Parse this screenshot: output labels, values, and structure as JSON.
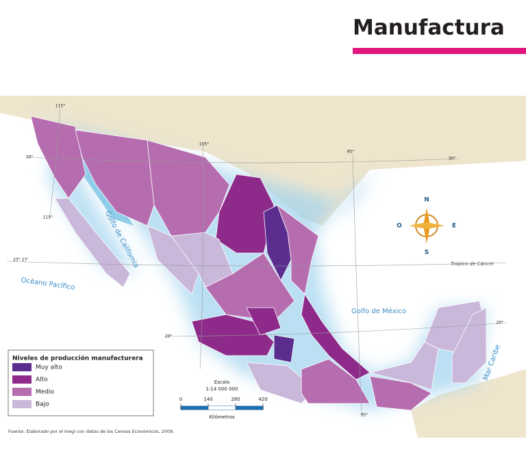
{
  "header": {
    "title": "Manufactura"
  },
  "map": {
    "grid_labels": [
      "115°",
      "115°",
      "105°",
      "95°",
      "95°",
      "30°",
      "30°",
      "23° 27'",
      "20°",
      "20°"
    ],
    "water_labels": [
      "Golfo de California",
      "Océano Pacífico",
      "Golfo de México",
      "Mar Caribe"
    ],
    "tropic_label": "Trópico de Cáncer",
    "compass": {
      "north": "N",
      "south": "S",
      "east": "E",
      "west": "O"
    }
  },
  "legend": {
    "title": "Niveles de producción manufacturera",
    "items": [
      {
        "label": "Muy alto",
        "color": "#5b2d8e"
      },
      {
        "label": "Alto",
        "color": "#8e2a8a"
      },
      {
        "label": "Medio",
        "color": "#b56db0"
      },
      {
        "label": "Bajo",
        "color": "#c9b8da"
      }
    ]
  },
  "scale": {
    "title": "Escala",
    "ratio": "1:14 000 000",
    "ticks": [
      0,
      140,
      280,
      420
    ],
    "unit": "Kilómetros"
  },
  "source": "Fuente: Elaborado por el Inegi con datos de los Censos Económicos, 2009."
}
